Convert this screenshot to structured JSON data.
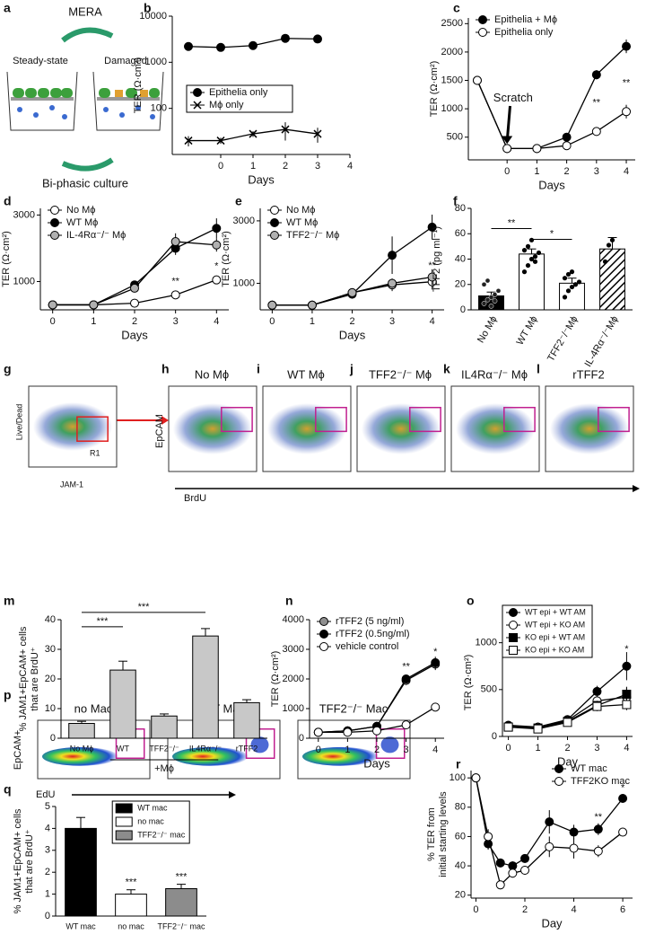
{
  "panel_labels": [
    "a",
    "b",
    "c",
    "d",
    "e",
    "f",
    "g",
    "h",
    "i",
    "j",
    "k",
    "l",
    "m",
    "n",
    "o",
    "p",
    "q",
    "r"
  ],
  "diagram": {
    "title": "MERA",
    "left": "Steady-state",
    "right": "Damaged",
    "caption": "Bi-phasic culture"
  },
  "flow": {
    "gate_plot": {
      "y_label": "Live/Dead",
      "x_label": "JAM-1",
      "gate": "R1"
    },
    "brdu_plots": {
      "titles": [
        "No Mϕ",
        "WT Mϕ",
        "TFF2⁻/⁻ Mϕ",
        "IL4Rα⁻/⁻ Mϕ",
        "rTFF2"
      ],
      "y_label": "EpCAM",
      "x_label": "BrdU"
    },
    "edu_plots": {
      "titles": [
        "no Mac",
        "WT Mac",
        "TFF2⁻/⁻ Mac"
      ],
      "y_label": "EpCAM+",
      "x_label": "EdU"
    }
  },
  "chart_data": [
    {
      "type": "line",
      "y_label": "TER (Ω·cm²)",
      "x_label": "Days",
      "log_y": true,
      "x": [
        -1,
        0,
        1,
        2,
        3
      ],
      "xlim": [
        -1.5,
        4
      ],
      "xticks": [
        0,
        1,
        2,
        3,
        4
      ],
      "ylim": [
        10,
        10000
      ],
      "yticks": [
        100,
        1000,
        10000
      ],
      "legend": "center right",
      "legend_box": true,
      "series": [
        {
          "name": "Epithelia only",
          "color": "#000000",
          "marker": "circle",
          "values": [
            2200,
            2100,
            2300,
            3300,
            3200
          ],
          "errors": [
            0,
            0,
            0,
            0,
            0
          ]
        },
        {
          "name": "Mϕ only",
          "color": "#000000",
          "marker": "x",
          "values": [
            20,
            20,
            28,
            35,
            28
          ],
          "errors": [
            5,
            3,
            4,
            15,
            10
          ]
        }
      ]
    },
    {
      "type": "line",
      "y_label": "TER (Ω·cm²)",
      "x_label": "Days",
      "annotations": [
        "Scratch",
        "**",
        "**"
      ],
      "x": [
        -1,
        0,
        1,
        2,
        3,
        4
      ],
      "xlim": [
        -1.3,
        4.3
      ],
      "xticks": [
        0,
        1,
        2,
        3,
        4
      ],
      "ylim": [
        100,
        2600
      ],
      "yticks": [
        500,
        1000,
        1500,
        2000,
        2500
      ],
      "legend": "upper left",
      "legend_box": false,
      "series": [
        {
          "name": "Epithelia + Mϕ",
          "color": "#000000",
          "marker": "circle",
          "values": [
            1500,
            300,
            300,
            500,
            1600,
            2100
          ],
          "errors": [
            0,
            20,
            20,
            60,
            80,
            120
          ]
        },
        {
          "name": "Epithelia only",
          "color": "#ffffff",
          "marker": "circle",
          "values": [
            1500,
            300,
            300,
            350,
            600,
            950
          ],
          "errors": [
            0,
            20,
            20,
            30,
            70,
            120
          ]
        }
      ]
    },
    {
      "type": "line",
      "y_label": "TER (Ω·cm²)",
      "x_label": "Days",
      "annotations": [
        "**",
        "*"
      ],
      "x": [
        0,
        1,
        2,
        3,
        4
      ],
      "xlim": [
        -0.3,
        4.3
      ],
      "xticks": [
        0,
        1,
        2,
        3,
        4
      ],
      "ylim": [
        150,
        3200
      ],
      "yticks": [
        1000,
        3000
      ],
      "legend": "upper left",
      "legend_box": false,
      "series": [
        {
          "name": "No Mϕ",
          "color": "#ffffff",
          "marker": "circle",
          "values": [
            300,
            300,
            350,
            600,
            1050
          ],
          "errors": [
            20,
            20,
            40,
            60,
            120
          ]
        },
        {
          "name": "WT Mϕ",
          "color": "#000000",
          "marker": "circle",
          "values": [
            300,
            300,
            900,
            2000,
            2600
          ],
          "errors": [
            20,
            20,
            80,
            200,
            300
          ]
        },
        {
          "name": "IL-4Rα⁻/⁻ Mϕ",
          "color": "#b0b0b0",
          "marker": "circle",
          "values": [
            300,
            300,
            800,
            2200,
            2100
          ],
          "errors": [
            20,
            20,
            80,
            250,
            200
          ]
        }
      ]
    },
    {
      "type": "line",
      "y_label": "TER (Ω·cm²)",
      "x_label": "Days",
      "annotations": [
        "**"
      ],
      "x": [
        0,
        1,
        2,
        3,
        4
      ],
      "xlim": [
        -0.3,
        4.3
      ],
      "xticks": [
        0,
        1,
        2,
        3,
        4
      ],
      "ylim": [
        150,
        3400
      ],
      "yticks": [
        1000,
        3000
      ],
      "legend": "upper left",
      "legend_box": false,
      "series": [
        {
          "name": "No Mϕ",
          "color": "#ffffff",
          "marker": "circle",
          "values": [
            300,
            300,
            700,
            950,
            1050
          ],
          "errors": [
            20,
            20,
            60,
            200,
            250
          ]
        },
        {
          "name": "WT Mϕ",
          "color": "#000000",
          "marker": "circle",
          "values": [
            300,
            300,
            650,
            1900,
            2800
          ],
          "errors": [
            20,
            20,
            60,
            600,
            400
          ]
        },
        {
          "name": "TFF2⁻/⁻ Mϕ",
          "color": "#b0b0b0",
          "marker": "circle",
          "values": [
            300,
            300,
            700,
            1000,
            1200
          ],
          "errors": [
            20,
            20,
            60,
            150,
            250
          ]
        }
      ]
    },
    {
      "type": "bar",
      "y_label": "TFF2 (pg ml⁻¹)",
      "rotate_categories": true,
      "significance": [
        "**",
        "*"
      ],
      "categories": [
        "No Mϕ",
        "WT Mϕ",
        "TFF2⁻/⁻Mϕ",
        "IL-4Rα⁻/⁻Mϕ"
      ],
      "values": [
        11,
        44,
        21,
        48
      ],
      "errors": [
        3,
        4,
        4,
        9
      ],
      "colors": [
        "#000000",
        "#ffffff",
        "#ffffff",
        "#ffffff"
      ],
      "hatched": [
        false,
        false,
        false,
        true
      ],
      "points": [
        [
          5,
          8,
          10,
          12,
          15,
          20,
          23,
          3,
          7
        ],
        [
          30,
          35,
          40,
          42,
          45,
          47,
          50,
          55,
          38
        ],
        [
          10,
          15,
          18,
          20,
          22,
          25,
          28,
          30
        ],
        [
          38,
          51,
          55
        ]
      ],
      "ylim": [
        0,
        80
      ],
      "yticks": [
        0,
        20,
        40,
        60,
        80
      ]
    },
    {
      "type": "bar",
      "y_label": "% JAM1+EpCAM+ cells that are BrdU⁺",
      "rotate_categories": false,
      "significance": [
        "***",
        "***"
      ],
      "group_label": "+Mϕ",
      "categories": [
        "No Mϕ",
        "WT",
        "TFF2⁻/⁻",
        "IL4Rα⁻/⁻",
        "rTFF2"
      ],
      "values": [
        5,
        23,
        7.5,
        34.5,
        12
      ],
      "errors": [
        0.7,
        3,
        0.7,
        2.5,
        1
      ],
      "colors": [
        "#c8c8c8",
        "#c8c8c8",
        "#c8c8c8",
        "#c8c8c8",
        "#c8c8c8"
      ],
      "hatched": [
        false,
        false,
        false,
        false,
        false
      ],
      "ylim": [
        0,
        40
      ],
      "yticks": [
        0,
        10,
        20,
        30,
        40
      ]
    },
    {
      "type": "line",
      "y_label": "TER (Ω·cm²)",
      "x_label": "Days",
      "annotations": [
        "**",
        "*"
      ],
      "x": [
        0,
        1,
        2,
        3,
        4
      ],
      "xlim": [
        -0.3,
        4.3
      ],
      "xticks": [
        0,
        1,
        2,
        3,
        4
      ],
      "ylim": [
        0,
        4000
      ],
      "yticks": [
        0,
        1000,
        2000,
        3000,
        4000
      ],
      "legend": "upper left",
      "legend_box": false,
      "series": [
        {
          "name": "rTFF2 (5 ng/ml)",
          "color": "#909090",
          "marker": "circle",
          "values": [
            200,
            250,
            400,
            1950,
            2500
          ],
          "errors": [
            30,
            30,
            50,
            150,
            200
          ]
        },
        {
          "name": "rTFF2 (0.5ng/ml)",
          "color": "#000000",
          "marker": "circle",
          "values": [
            200,
            250,
            400,
            2000,
            2550
          ],
          "errors": [
            30,
            30,
            50,
            150,
            200
          ]
        },
        {
          "name": "vehicle control",
          "color": "#ffffff",
          "marker": "circle",
          "values": [
            200,
            200,
            250,
            450,
            1050
          ],
          "errors": [
            30,
            30,
            50,
            100,
            120
          ]
        }
      ]
    },
    {
      "type": "line",
      "y_label": "TER (Ω·cm²)",
      "x_label": "Day",
      "annotations": [
        "*"
      ],
      "x": [
        0,
        1,
        2,
        3,
        4
      ],
      "xlim": [
        -0.2,
        4.2
      ],
      "xticks": [
        0,
        1,
        2,
        3,
        4
      ],
      "ylim": [
        0,
        1150
      ],
      "yticks": [
        0,
        500,
        1000
      ],
      "legend": "upper left",
      "legend_box": true,
      "series": [
        {
          "name": "WT epi + WT AM",
          "color": "#000000",
          "marker": "circle",
          "values": [
            120,
            100,
            180,
            480,
            750
          ],
          "errors": [
            10,
            10,
            20,
            60,
            150
          ]
        },
        {
          "name": "WT epi + KO AM",
          "color": "#ffffff",
          "marker": "circle",
          "values": [
            110,
            100,
            170,
            380,
            420
          ],
          "errors": [
            10,
            10,
            20,
            50,
            100
          ]
        },
        {
          "name": "KO epi + WT AM",
          "color": "#000000",
          "marker": "square",
          "values": [
            100,
            90,
            160,
            330,
            450
          ],
          "errors": [
            10,
            10,
            20,
            50,
            80
          ]
        },
        {
          "name": "KO epi + KO AM",
          "color": "#ffffff",
          "marker": "square",
          "values": [
            100,
            80,
            150,
            320,
            340
          ],
          "errors": [
            10,
            10,
            20,
            50,
            60
          ]
        }
      ]
    },
    {
      "type": "bar",
      "y_label": "% JAM1+EpCAM+ cells that are BrdU⁺",
      "rotate_categories": false,
      "significance": [
        "***",
        "***"
      ],
      "legend": "upper right",
      "categories": [
        "WT mac",
        "no mac",
        "TFF2⁻/⁻ mac"
      ],
      "values": [
        4.0,
        1.0,
        1.25
      ],
      "errors": [
        0.5,
        0.2,
        0.2
      ],
      "colors": [
        "#000000",
        "#ffffff",
        "#8c8c8c"
      ],
      "hatched": [
        false,
        false,
        false
      ],
      "ylim": [
        0,
        5
      ],
      "yticks": [
        0,
        1,
        2,
        3,
        4,
        5
      ]
    },
    {
      "type": "line",
      "y_label": "% TER from initial starting levels",
      "x_label": "Day",
      "annotations": [
        "**",
        "*"
      ],
      "x": [
        0,
        0.5,
        1,
        1.5,
        2,
        3,
        4,
        5,
        6
      ],
      "xlim": [
        -0.2,
        6.4
      ],
      "xticks": [
        0,
        2,
        4,
        6
      ],
      "ylim": [
        18,
        105
      ],
      "yticks": [
        20,
        40,
        60,
        80,
        100
      ],
      "legend": "upper right",
      "legend_box": false,
      "series": [
        {
          "name": "WT mac",
          "color": "#000000",
          "marker": "circle",
          "values": [
            100,
            55,
            42,
            40,
            45,
            70,
            63,
            65,
            86
          ],
          "errors": [
            1,
            4,
            3,
            3,
            3,
            8,
            5,
            4,
            3
          ]
        },
        {
          "name": "TFF2KO mac",
          "color": "#ffffff",
          "marker": "circle",
          "values": [
            100,
            60,
            27,
            35,
            37,
            53,
            52,
            50,
            63
          ],
          "errors": [
            1,
            5,
            3,
            3,
            3,
            7,
            7,
            4,
            2
          ]
        }
      ]
    }
  ]
}
